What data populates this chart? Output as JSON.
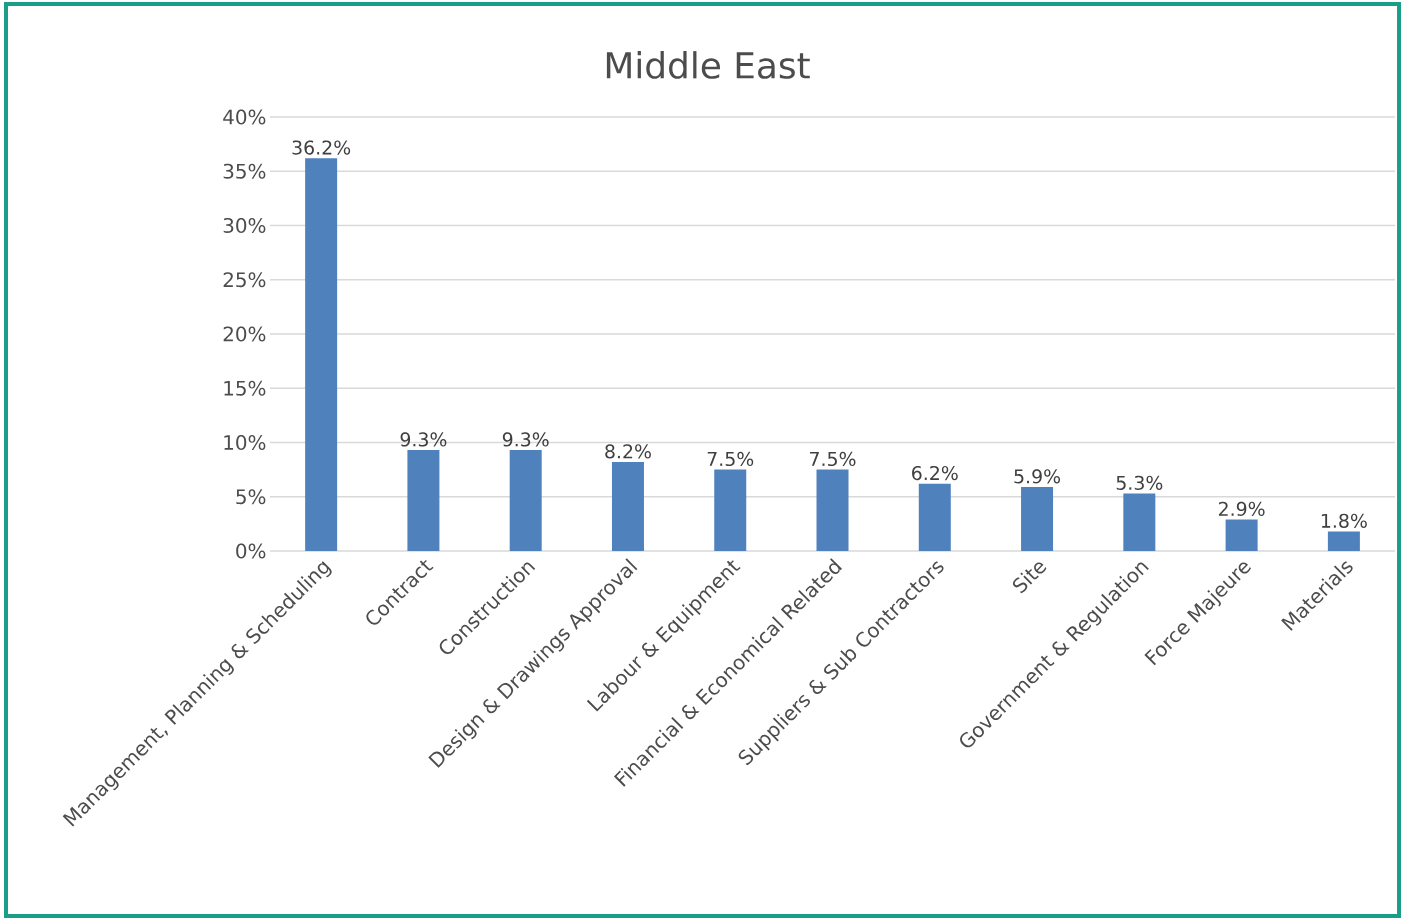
{
  "chart_data": {
    "type": "bar",
    "title": "Middle East",
    "categories": [
      "Management, Planning & Scheduling",
      "Contract",
      "Construction",
      "Design & Drawings Approval",
      "Labour & Equipment",
      "Financial & Economical Related",
      "Suppliers & Sub Contractors",
      "Site",
      "Government & Regulation",
      "Force Majeure",
      "Materials"
    ],
    "values": [
      36.2,
      9.3,
      9.3,
      8.2,
      7.5,
      7.5,
      6.2,
      5.9,
      5.3,
      2.9,
      1.8
    ],
    "value_labels": [
      "36.2%",
      "9.3%",
      "9.3%",
      "8.2%",
      "7.5%",
      "7.5%",
      "6.2%",
      "5.9%",
      "5.3%",
      "2.9%",
      "1.8%"
    ],
    "color": "#4f81bd",
    "ylim": [
      0,
      40
    ],
    "yticks": [
      {
        "value": 0,
        "label": "0%"
      },
      {
        "value": 5,
        "label": "5%"
      },
      {
        "value": 10,
        "label": "10%"
      },
      {
        "value": 15,
        "label": "15%"
      },
      {
        "value": 20,
        "label": "20%"
      },
      {
        "value": 25,
        "label": "25%"
      },
      {
        "value": 30,
        "label": "30%"
      },
      {
        "value": 35,
        "label": "35%"
      },
      {
        "value": 40,
        "label": "40%"
      }
    ],
    "grid": "y"
  }
}
